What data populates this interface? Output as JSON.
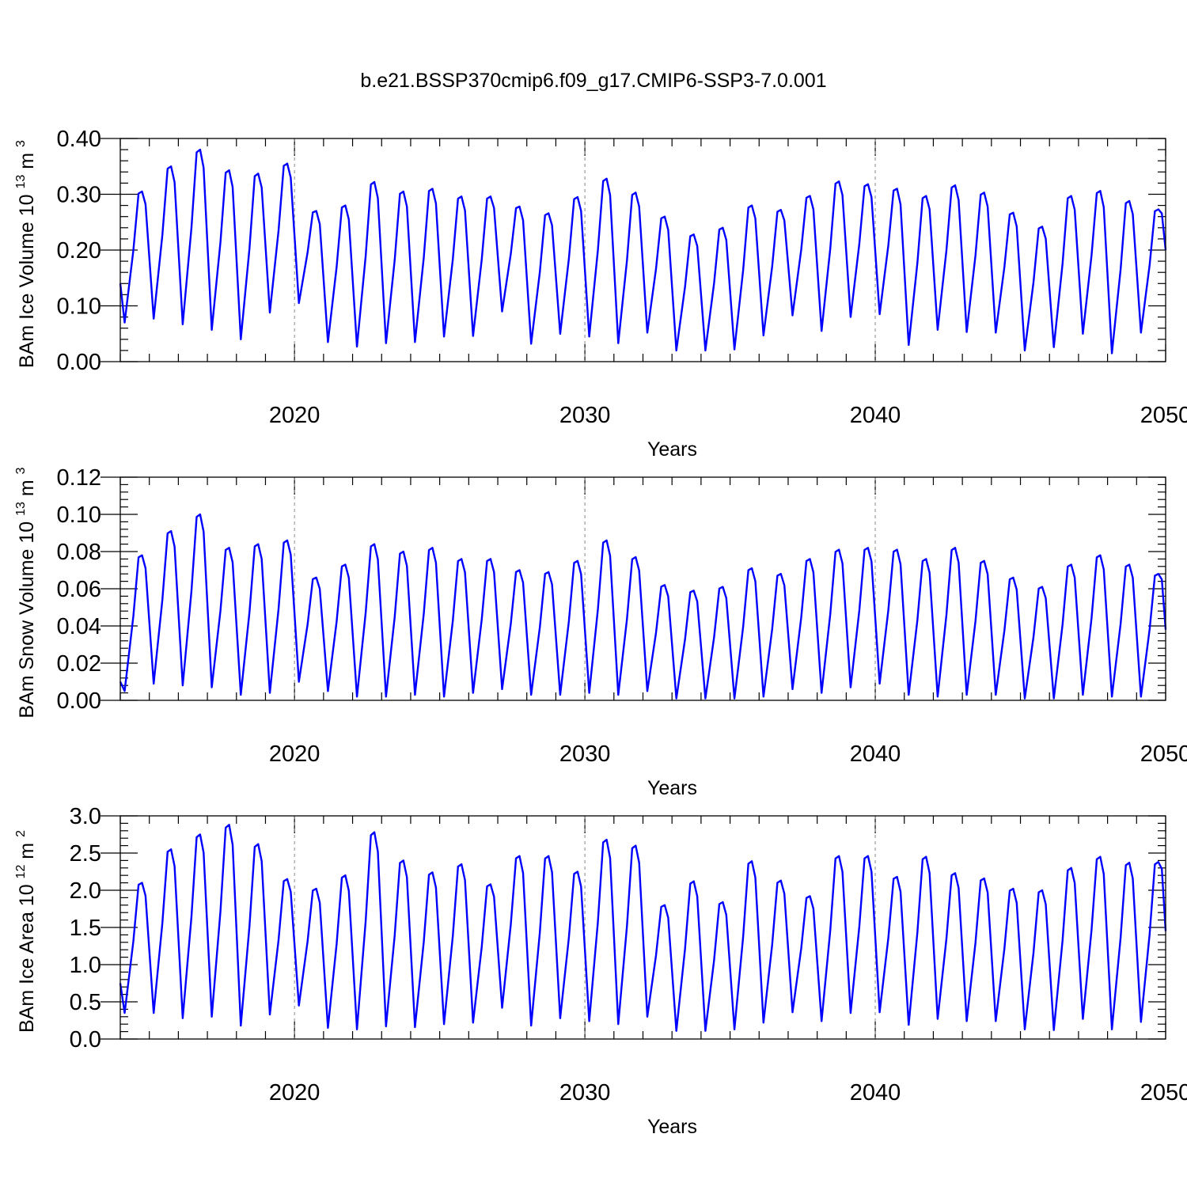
{
  "title": "b.e21.BSSP370cmip6.f09_g17.CMIP6-SSP3-7.0.001",
  "colors": {
    "line": "#0000ff",
    "grid": "#888888"
  },
  "chart_data": [
    {
      "type": "line",
      "ylabel": "BAm Ice Volume",
      "yunit_base": "10",
      "yunit_exp": "13",
      "yunit_tail": "m",
      "yunit_tail_exp": "3",
      "xlabel": "Years",
      "xlim": [
        2014,
        2050
      ],
      "ylim": [
        0,
        0.4
      ],
      "yticks": [
        "0.00",
        "0.10",
        "0.20",
        "0.30",
        "0.40"
      ],
      "xticks": [
        "2020",
        "2030",
        "2040",
        "2050"
      ],
      "grid_x": [
        2020,
        2030,
        2040
      ],
      "series": [
        {
          "peaks": [
            [
              2014.75,
              0.305
            ],
            [
              2015.75,
              0.35
            ],
            [
              2016.75,
              0.38
            ],
            [
              2017.75,
              0.343
            ],
            [
              2018.75,
              0.337
            ],
            [
              2019.75,
              0.355
            ],
            [
              2020.75,
              0.27
            ],
            [
              2021.75,
              0.28
            ],
            [
              2022.75,
              0.322
            ],
            [
              2023.75,
              0.305
            ],
            [
              2024.75,
              0.31
            ],
            [
              2025.75,
              0.296
            ],
            [
              2026.75,
              0.296
            ],
            [
              2027.75,
              0.278
            ],
            [
              2028.75,
              0.266
            ],
            [
              2029.75,
              0.295
            ],
            [
              2030.75,
              0.328
            ],
            [
              2031.75,
              0.303
            ],
            [
              2032.75,
              0.26
            ],
            [
              2033.75,
              0.228
            ],
            [
              2034.75,
              0.24
            ],
            [
              2035.75,
              0.28
            ],
            [
              2036.75,
              0.272
            ],
            [
              2037.75,
              0.297
            ],
            [
              2038.75,
              0.323
            ],
            [
              2039.75,
              0.318
            ],
            [
              2040.75,
              0.31
            ],
            [
              2041.75,
              0.297
            ],
            [
              2042.75,
              0.316
            ],
            [
              2043.75,
              0.303
            ],
            [
              2044.75,
              0.267
            ],
            [
              2045.75,
              0.242
            ],
            [
              2046.75,
              0.297
            ],
            [
              2047.75,
              0.306
            ],
            [
              2048.75,
              0.288
            ],
            [
              2049.75,
              0.273
            ]
          ],
          "troughs": [
            [
              2014.15,
              0.07
            ],
            [
              2015.15,
              0.077
            ],
            [
              2016.15,
              0.067
            ],
            [
              2017.15,
              0.057
            ],
            [
              2018.15,
              0.04
            ],
            [
              2019.15,
              0.088
            ],
            [
              2020.15,
              0.105
            ],
            [
              2021.15,
              0.035
            ],
            [
              2022.15,
              0.027
            ],
            [
              2023.15,
              0.033
            ],
            [
              2024.15,
              0.035
            ],
            [
              2025.15,
              0.045
            ],
            [
              2026.15,
              0.046
            ],
            [
              2027.15,
              0.09
            ],
            [
              2028.15,
              0.032
            ],
            [
              2029.15,
              0.05
            ],
            [
              2030.15,
              0.045
            ],
            [
              2031.15,
              0.033
            ],
            [
              2032.15,
              0.052
            ],
            [
              2033.15,
              0.02
            ],
            [
              2034.15,
              0.02
            ],
            [
              2035.15,
              0.022
            ],
            [
              2036.15,
              0.047
            ],
            [
              2037.15,
              0.083
            ],
            [
              2038.15,
              0.055
            ],
            [
              2039.15,
              0.08
            ],
            [
              2040.15,
              0.085
            ],
            [
              2041.15,
              0.03
            ],
            [
              2042.15,
              0.057
            ],
            [
              2043.15,
              0.053
            ],
            [
              2044.15,
              0.052
            ],
            [
              2045.15,
              0.02
            ],
            [
              2046.15,
              0.026
            ],
            [
              2047.15,
              0.05
            ],
            [
              2048.15,
              0.015
            ],
            [
              2049.15,
              0.052
            ]
          ],
          "start": [
            2014.0,
            0.14
          ],
          "end": [
            2050.0,
            0.2
          ]
        }
      ]
    },
    {
      "type": "line",
      "ylabel": "BAm Snow Volume",
      "yunit_base": "10",
      "yunit_exp": "13",
      "yunit_tail": "m",
      "yunit_tail_exp": "3",
      "xlabel": "Years",
      "xlim": [
        2014,
        2050
      ],
      "ylim": [
        0,
        0.12
      ],
      "yticks": [
        "0.00",
        "0.02",
        "0.04",
        "0.06",
        "0.08",
        "0.10",
        "0.12"
      ],
      "xticks": [
        "2020",
        "2030",
        "2040",
        "2050"
      ],
      "grid_x": [
        2020,
        2030,
        2040
      ],
      "series": [
        {
          "peaks": [
            [
              2014.75,
              0.078
            ],
            [
              2015.75,
              0.091
            ],
            [
              2016.75,
              0.1
            ],
            [
              2017.75,
              0.082
            ],
            [
              2018.75,
              0.084
            ],
            [
              2019.75,
              0.086
            ],
            [
              2020.75,
              0.066
            ],
            [
              2021.75,
              0.073
            ],
            [
              2022.75,
              0.084
            ],
            [
              2023.75,
              0.08
            ],
            [
              2024.75,
              0.082
            ],
            [
              2025.75,
              0.076
            ],
            [
              2026.75,
              0.076
            ],
            [
              2027.75,
              0.07
            ],
            [
              2028.75,
              0.069
            ],
            [
              2029.75,
              0.075
            ],
            [
              2030.75,
              0.086
            ],
            [
              2031.75,
              0.077
            ],
            [
              2032.75,
              0.062
            ],
            [
              2033.75,
              0.059
            ],
            [
              2034.75,
              0.061
            ],
            [
              2035.75,
              0.071
            ],
            [
              2036.75,
              0.068
            ],
            [
              2037.75,
              0.076
            ],
            [
              2038.75,
              0.081
            ],
            [
              2039.75,
              0.082
            ],
            [
              2040.75,
              0.081
            ],
            [
              2041.75,
              0.076
            ],
            [
              2042.75,
              0.082
            ],
            [
              2043.75,
              0.075
            ],
            [
              2044.75,
              0.066
            ],
            [
              2045.75,
              0.061
            ],
            [
              2046.75,
              0.073
            ],
            [
              2047.75,
              0.078
            ],
            [
              2048.75,
              0.073
            ],
            [
              2049.75,
              0.068
            ]
          ],
          "troughs": [
            [
              2014.15,
              0.005
            ],
            [
              2015.15,
              0.009
            ],
            [
              2016.15,
              0.008
            ],
            [
              2017.15,
              0.007
            ],
            [
              2018.15,
              0.003
            ],
            [
              2019.15,
              0.004
            ],
            [
              2020.15,
              0.01
            ],
            [
              2021.15,
              0.005
            ],
            [
              2022.15,
              0.002
            ],
            [
              2023.15,
              0.002
            ],
            [
              2024.15,
              0.003
            ],
            [
              2025.15,
              0.002
            ],
            [
              2026.15,
              0.004
            ],
            [
              2027.15,
              0.006
            ],
            [
              2028.15,
              0.003
            ],
            [
              2029.15,
              0.003
            ],
            [
              2030.15,
              0.004
            ],
            [
              2031.15,
              0.003
            ],
            [
              2032.15,
              0.005
            ],
            [
              2033.15,
              0.001
            ],
            [
              2034.15,
              0.001
            ],
            [
              2035.15,
              0.001
            ],
            [
              2036.15,
              0.002
            ],
            [
              2037.15,
              0.006
            ],
            [
              2038.15,
              0.004
            ],
            [
              2039.15,
              0.007
            ],
            [
              2040.15,
              0.009
            ],
            [
              2041.15,
              0.003
            ],
            [
              2042.15,
              0.002
            ],
            [
              2043.15,
              0.003
            ],
            [
              2044.15,
              0.003
            ],
            [
              2045.15,
              0.001
            ],
            [
              2046.15,
              0.001
            ],
            [
              2047.15,
              0.003
            ],
            [
              2048.15,
              0.002
            ],
            [
              2049.15,
              0.002
            ]
          ],
          "start": [
            2014.0,
            0.01
          ],
          "end": [
            2050.0,
            0.038
          ]
        }
      ]
    },
    {
      "type": "line",
      "ylabel": "BAm Ice Area",
      "yunit_base": "10",
      "yunit_exp": "12",
      "yunit_tail": "m",
      "yunit_tail_exp": "2",
      "xlabel": "Years",
      "xlim": [
        2014,
        2050
      ],
      "ylim": [
        0,
        3.0
      ],
      "yticks": [
        "0.0",
        "0.5",
        "1.0",
        "1.5",
        "2.0",
        "2.5",
        "3.0"
      ],
      "xticks": [
        "2020",
        "2030",
        "2040",
        "2050"
      ],
      "grid_x": [
        2020,
        2030,
        2040
      ],
      "series": [
        {
          "peaks": [
            [
              2014.75,
              2.1
            ],
            [
              2015.75,
              2.55
            ],
            [
              2016.75,
              2.75
            ],
            [
              2017.75,
              2.88
            ],
            [
              2018.75,
              2.62
            ],
            [
              2019.75,
              2.15
            ],
            [
              2020.75,
              2.02
            ],
            [
              2021.75,
              2.2
            ],
            [
              2022.75,
              2.78
            ],
            [
              2023.75,
              2.4
            ],
            [
              2024.75,
              2.24
            ],
            [
              2025.75,
              2.35
            ],
            [
              2026.75,
              2.08
            ],
            [
              2027.75,
              2.46
            ],
            [
              2028.75,
              2.46
            ],
            [
              2029.75,
              2.25
            ],
            [
              2030.75,
              2.68
            ],
            [
              2031.75,
              2.6
            ],
            [
              2032.75,
              1.8
            ],
            [
              2033.75,
              2.12
            ],
            [
              2034.75,
              1.84
            ],
            [
              2035.75,
              2.39
            ],
            [
              2036.75,
              2.13
            ],
            [
              2037.75,
              1.92
            ],
            [
              2038.75,
              2.46
            ],
            [
              2039.75,
              2.46
            ],
            [
              2040.75,
              2.18
            ],
            [
              2041.75,
              2.45
            ],
            [
              2042.75,
              2.23
            ],
            [
              2043.75,
              2.16
            ],
            [
              2044.75,
              2.02
            ],
            [
              2045.75,
              2.0
            ],
            [
              2046.75,
              2.3
            ],
            [
              2047.75,
              2.45
            ],
            [
              2048.75,
              2.37
            ],
            [
              2049.75,
              2.38
            ]
          ],
          "troughs": [
            [
              2014.15,
              0.35
            ],
            [
              2015.15,
              0.35
            ],
            [
              2016.15,
              0.28
            ],
            [
              2017.15,
              0.3
            ],
            [
              2018.15,
              0.18
            ],
            [
              2019.15,
              0.33
            ],
            [
              2020.15,
              0.45
            ],
            [
              2021.15,
              0.15
            ],
            [
              2022.15,
              0.13
            ],
            [
              2023.15,
              0.17
            ],
            [
              2024.15,
              0.16
            ],
            [
              2025.15,
              0.2
            ],
            [
              2026.15,
              0.22
            ],
            [
              2027.15,
              0.42
            ],
            [
              2028.15,
              0.18
            ],
            [
              2029.15,
              0.28
            ],
            [
              2030.15,
              0.24
            ],
            [
              2031.15,
              0.2
            ],
            [
              2032.15,
              0.3
            ],
            [
              2033.15,
              0.11
            ],
            [
              2034.15,
              0.11
            ],
            [
              2035.15,
              0.13
            ],
            [
              2036.15,
              0.22
            ],
            [
              2037.15,
              0.36
            ],
            [
              2038.15,
              0.24
            ],
            [
              2039.15,
              0.35
            ],
            [
              2040.15,
              0.36
            ],
            [
              2041.15,
              0.19
            ],
            [
              2042.15,
              0.27
            ],
            [
              2043.15,
              0.24
            ],
            [
              2044.15,
              0.24
            ],
            [
              2045.15,
              0.13
            ],
            [
              2046.15,
              0.12
            ],
            [
              2047.15,
              0.27
            ],
            [
              2048.15,
              0.13
            ],
            [
              2049.15,
              0.23
            ]
          ],
          "start": [
            2014.0,
            0.75
          ],
          "end": [
            2050.0,
            1.45
          ]
        }
      ]
    }
  ]
}
